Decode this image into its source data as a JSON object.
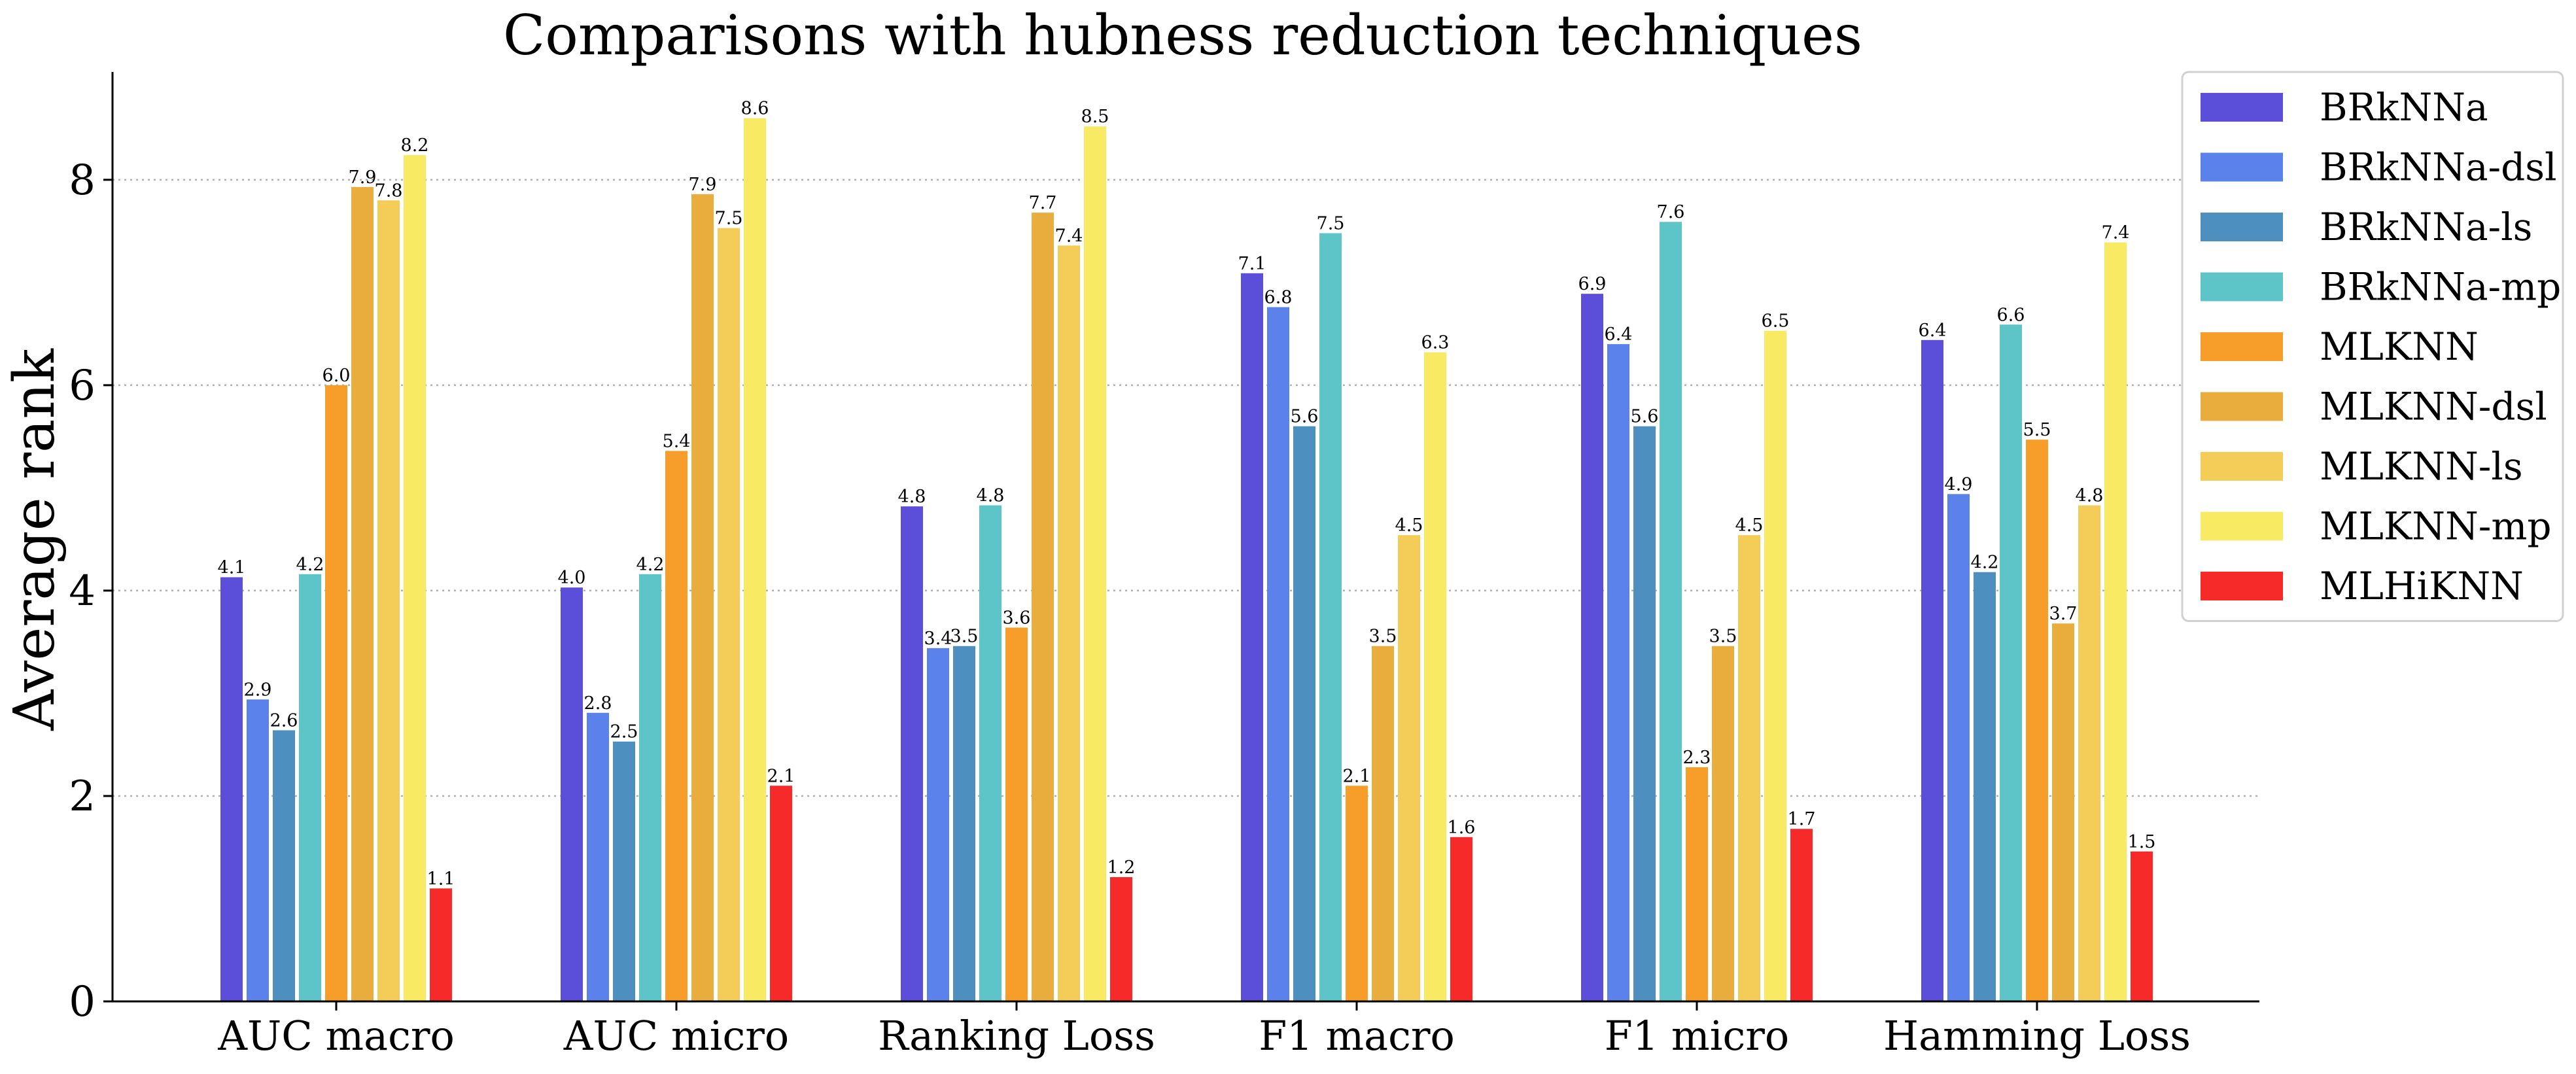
{
  "chart_data": {
    "type": "bar",
    "title": "Comparisons with hubness reduction techniques",
    "xlabel": "",
    "ylabel": "Average rank",
    "ylim": [
      0,
      9.05
    ],
    "yticks": [
      0,
      2,
      4,
      6,
      8
    ],
    "grid": "horizontal-dotted",
    "legend_position": "top-right-outside",
    "categories": [
      "AUC macro",
      "AUC micro",
      "Ranking Loss",
      "F1 macro",
      "F1 micro",
      "Hamming Loss"
    ],
    "series": [
      {
        "name": "BRkNNa",
        "color": "#5b4fd9",
        "values": [
          4.13,
          4.03,
          4.82,
          7.09,
          6.89,
          6.44
        ]
      },
      {
        "name": "BRkNNa-dsl",
        "color": "#5b82ea",
        "values": [
          2.94,
          2.81,
          3.44,
          6.76,
          6.4,
          4.94
        ]
      },
      {
        "name": "BRkNNa-ls",
        "color": "#4d8fbf",
        "values": [
          2.64,
          2.53,
          3.46,
          5.6,
          5.6,
          4.18
        ]
      },
      {
        "name": "BRkNNa-mp",
        "color": "#5dc5c8",
        "values": [
          4.16,
          4.16,
          4.83,
          7.48,
          7.59,
          6.59
        ]
      },
      {
        "name": "MLKNN",
        "color": "#f79e2a",
        "values": [
          6.0,
          5.36,
          3.64,
          2.1,
          2.28,
          5.47
        ]
      },
      {
        "name": "MLKNN-dsl",
        "color": "#e8ad3c",
        "values": [
          7.93,
          7.86,
          7.68,
          3.46,
          3.46,
          3.68
        ]
      },
      {
        "name": "MLKNN-ls",
        "color": "#f4cc58",
        "values": [
          7.8,
          7.53,
          7.36,
          4.54,
          4.54,
          4.83
        ]
      },
      {
        "name": "MLKNN-mp",
        "color": "#f9ea63",
        "values": [
          8.24,
          8.6,
          8.52,
          6.32,
          6.53,
          7.39
        ]
      },
      {
        "name": "MLHiKNN",
        "color": "#f72a2a",
        "values": [
          1.1,
          2.1,
          1.21,
          1.6,
          1.68,
          1.46
        ]
      }
    ],
    "data_labels": [
      [
        "4.1",
        "4.0",
        "4.8",
        "7.1",
        "6.9",
        "6.4"
      ],
      [
        "2.9",
        "2.8",
        "3.4",
        "6.8",
        "6.4",
        "4.9"
      ],
      [
        "2.6",
        "2.5",
        "3.5",
        "5.6",
        "5.6",
        "4.2"
      ],
      [
        "4.2",
        "4.2",
        "4.8",
        "7.5",
        "7.6",
        "6.6"
      ],
      [
        "6.0",
        "5.4",
        "3.6",
        "2.1",
        "2.3",
        "5.5"
      ],
      [
        "7.9",
        "7.9",
        "7.7",
        "3.5",
        "3.5",
        "3.7"
      ],
      [
        "7.8",
        "7.5",
        "7.4",
        "4.5",
        "4.5",
        "4.8"
      ],
      [
        "8.2",
        "8.6",
        "8.5",
        "6.3",
        "6.5",
        "7.4"
      ],
      [
        "1.1",
        "2.1",
        "1.2",
        "1.6",
        "1.7",
        "1.5"
      ]
    ]
  }
}
